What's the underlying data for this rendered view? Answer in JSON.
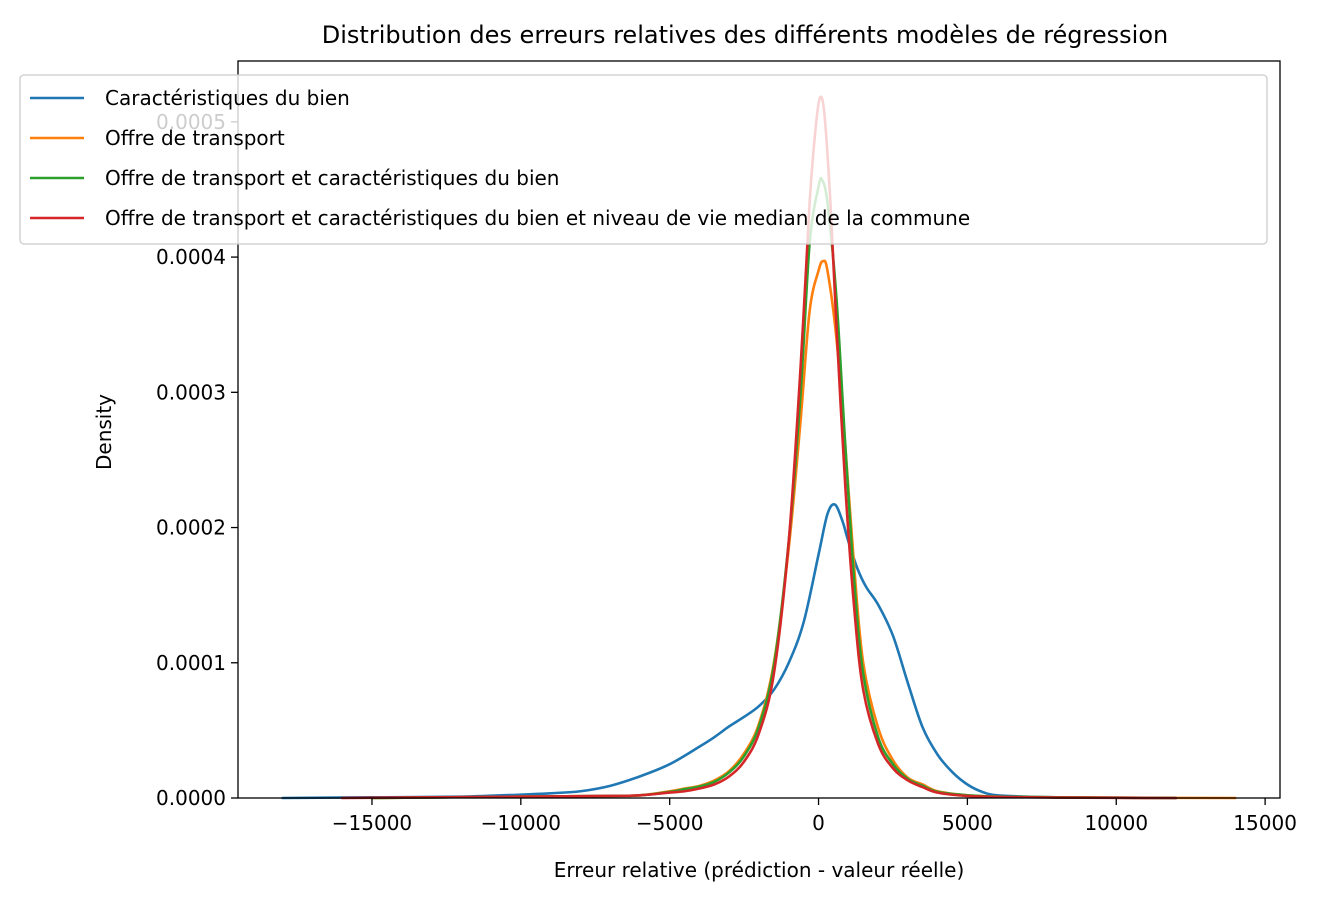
{
  "chart_data": {
    "type": "line",
    "title": "Distribution des erreurs relatives des différents modèles de régression",
    "xlabel": "Erreur relative (prédiction - valeur réelle)",
    "ylabel": "Density",
    "xlim": [
      -19500,
      15500
    ],
    "ylim": [
      0,
      0.000545
    ],
    "xticks": [
      -15000,
      -10000,
      -5000,
      0,
      5000,
      10000,
      15000
    ],
    "xtick_labels": [
      "−15000",
      "−10000",
      "−5000",
      "0",
      "5000",
      "10000",
      "15000"
    ],
    "yticks": [
      0,
      0.0001,
      0.0002,
      0.0003,
      0.0004,
      0.0005
    ],
    "ytick_labels": [
      "0.0000",
      "0.0001",
      "0.0002",
      "0.0003",
      "0.0004",
      "0.0005"
    ],
    "grid": false,
    "legend_position": "top-left",
    "series": [
      {
        "name": "Caractéristiques du bien",
        "color": "#1f77b4",
        "points": [
          [
            -18000,
            0
          ],
          [
            -15000,
            5e-07
          ],
          [
            -12000,
            1e-06
          ],
          [
            -10000,
            2.5e-06
          ],
          [
            -9000,
            3.5e-06
          ],
          [
            -8000,
            5e-06
          ],
          [
            -7000,
            9e-06
          ],
          [
            -6000,
            1.6e-05
          ],
          [
            -5000,
            2.5e-05
          ],
          [
            -4000,
            3.8e-05
          ],
          [
            -3500,
            4.5e-05
          ],
          [
            -3000,
            5.3e-05
          ],
          [
            -2500,
            6e-05
          ],
          [
            -2000,
            6.8e-05
          ],
          [
            -1500,
            8e-05
          ],
          [
            -1000,
            0.0001
          ],
          [
            -500,
            0.00013
          ],
          [
            0,
            0.00018
          ],
          [
            300,
            0.00021
          ],
          [
            550,
            0.000217
          ],
          [
            800,
            0.000205
          ],
          [
            1000,
            0.00019
          ],
          [
            1300,
            0.00017
          ],
          [
            1600,
            0.000156
          ],
          [
            2000,
            0.000143
          ],
          [
            2500,
            0.00012
          ],
          [
            3000,
            8.5e-05
          ],
          [
            3500,
            5.2e-05
          ],
          [
            4000,
            3.2e-05
          ],
          [
            4500,
            1.9e-05
          ],
          [
            5000,
            1e-05
          ],
          [
            5500,
            4.5e-06
          ],
          [
            6000,
            2e-06
          ],
          [
            7000,
            1e-06
          ],
          [
            8000,
            5e-07
          ],
          [
            10000,
            2e-07
          ],
          [
            12000,
            0
          ]
        ]
      },
      {
        "name": "Offre de transport",
        "color": "#ff7f0e",
        "points": [
          [
            -15000,
            0
          ],
          [
            -10000,
            1e-06
          ],
          [
            -7000,
            1.5e-06
          ],
          [
            -6000,
            2e-06
          ],
          [
            -5000,
            5e-06
          ],
          [
            -4500,
            7e-06
          ],
          [
            -4000,
            9e-06
          ],
          [
            -3500,
            1.3e-05
          ],
          [
            -3000,
            2e-05
          ],
          [
            -2500,
            3.3e-05
          ],
          [
            -2000,
            5.5e-05
          ],
          [
            -1500,
            0.0001
          ],
          [
            -1000,
            0.000185
          ],
          [
            -600,
            0.00028
          ],
          [
            -300,
            0.00036
          ],
          [
            0,
            0.00039
          ],
          [
            150,
            0.000397
          ],
          [
            300,
            0.00039
          ],
          [
            600,
            0.00034
          ],
          [
            900,
            0.00026
          ],
          [
            1200,
            0.00017
          ],
          [
            1500,
            0.0001
          ],
          [
            2000,
            5.2e-05
          ],
          [
            2500,
            2.8e-05
          ],
          [
            3000,
            1.5e-05
          ],
          [
            3500,
            1e-05
          ],
          [
            4000,
            5e-06
          ],
          [
            5000,
            2e-06
          ],
          [
            6000,
            1e-06
          ],
          [
            8000,
            5e-07
          ],
          [
            10000,
            2e-07
          ],
          [
            14000,
            0
          ]
        ]
      },
      {
        "name": "Offre de transport et caractéristiques du bien",
        "color": "#2ca02c",
        "points": [
          [
            -15000,
            0
          ],
          [
            -10000,
            1e-06
          ],
          [
            -7000,
            1.5e-06
          ],
          [
            -6000,
            2e-06
          ],
          [
            -5000,
            4.5e-06
          ],
          [
            -4500,
            6.5e-06
          ],
          [
            -4000,
            8.5e-06
          ],
          [
            -3500,
            1.2e-05
          ],
          [
            -3000,
            1.9e-05
          ],
          [
            -2500,
            3.1e-05
          ],
          [
            -2000,
            5.3e-05
          ],
          [
            -1500,
            9.8e-05
          ],
          [
            -1000,
            0.00019
          ],
          [
            -600,
            0.0003
          ],
          [
            -300,
            0.00041
          ],
          [
            0,
            0.000452
          ],
          [
            120,
            0.000457
          ],
          [
            300,
            0.00044
          ],
          [
            600,
            0.00037
          ],
          [
            900,
            0.00026
          ],
          [
            1200,
            0.00016
          ],
          [
            1500,
            9.2e-05
          ],
          [
            2000,
            4.5e-05
          ],
          [
            2500,
            2.5e-05
          ],
          [
            3000,
            1.4e-05
          ],
          [
            3500,
            9e-06
          ],
          [
            4000,
            4.5e-06
          ],
          [
            5000,
            2e-06
          ],
          [
            6000,
            1e-06
          ],
          [
            8000,
            5e-07
          ],
          [
            12000,
            0
          ]
        ]
      },
      {
        "name": "Offre de transport et caractéristiques du bien et niveau de vie median de la commune",
        "color": "#d62728",
        "points": [
          [
            -16000,
            0
          ],
          [
            -10000,
            1e-06
          ],
          [
            -7000,
            1.5e-06
          ],
          [
            -6000,
            2e-06
          ],
          [
            -5000,
            4e-06
          ],
          [
            -4500,
            5e-06
          ],
          [
            -4000,
            7e-06
          ],
          [
            -3500,
            1e-05
          ],
          [
            -3000,
            1.6e-05
          ],
          [
            -2500,
            2.7e-05
          ],
          [
            -2000,
            4.8e-05
          ],
          [
            -1500,
            9.2e-05
          ],
          [
            -1000,
            0.00019
          ],
          [
            -600,
            0.00032
          ],
          [
            -300,
            0.00044
          ],
          [
            -100,
            0.000495
          ],
          [
            50,
            0.000518
          ],
          [
            200,
            0.000505
          ],
          [
            400,
            0.00044
          ],
          [
            600,
            0.00035
          ],
          [
            900,
            0.00023
          ],
          [
            1200,
            0.00014
          ],
          [
            1500,
            8e-05
          ],
          [
            2000,
            4e-05
          ],
          [
            2500,
            2.2e-05
          ],
          [
            3000,
            1.3e-05
          ],
          [
            3500,
            8e-06
          ],
          [
            4000,
            4e-06
          ],
          [
            5000,
            1.5e-06
          ],
          [
            6000,
            8e-07
          ],
          [
            8000,
            3e-07
          ],
          [
            12000,
            0
          ]
        ]
      }
    ]
  }
}
